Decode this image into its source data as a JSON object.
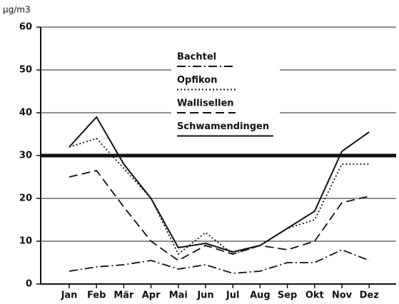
{
  "chart_data": {
    "type": "line",
    "unit_label": "µg/m3",
    "categories": [
      "Jan",
      "Feb",
      "Mär",
      "Apr",
      "Mai",
      "Jun",
      "Jul",
      "Aug",
      "Sep",
      "Okt",
      "Nov",
      "Dez"
    ],
    "series": [
      {
        "name": "Bachtel",
        "color": "#111111",
        "style": "dashdot",
        "values": [
          3,
          4,
          4.5,
          5.5,
          3.5,
          4.5,
          2.5,
          3,
          5,
          5,
          8,
          5.5
        ]
      },
      {
        "name": "Opfikon",
        "color": "#111111",
        "style": "dotted",
        "values": [
          32,
          34,
          27,
          20,
          7,
          12,
          7,
          9,
          13,
          15,
          28,
          28
        ]
      },
      {
        "name": "Wallisellen",
        "color": "#111111",
        "style": "dashed",
        "values": [
          25,
          26.5,
          18,
          10,
          5.5,
          9,
          7,
          9,
          8,
          10,
          19,
          20.5
        ]
      },
      {
        "name": "Schwamendingen",
        "color": "#111111",
        "style": "solid",
        "values": [
          32,
          39,
          28,
          20,
          8.5,
          9.5,
          7.5,
          9,
          13,
          17,
          31,
          35.5
        ]
      }
    ],
    "threshold": 30,
    "ylim": [
      0,
      60
    ],
    "yticks": [
      0,
      10,
      20,
      30,
      40,
      50,
      60
    ],
    "grid": true
  }
}
